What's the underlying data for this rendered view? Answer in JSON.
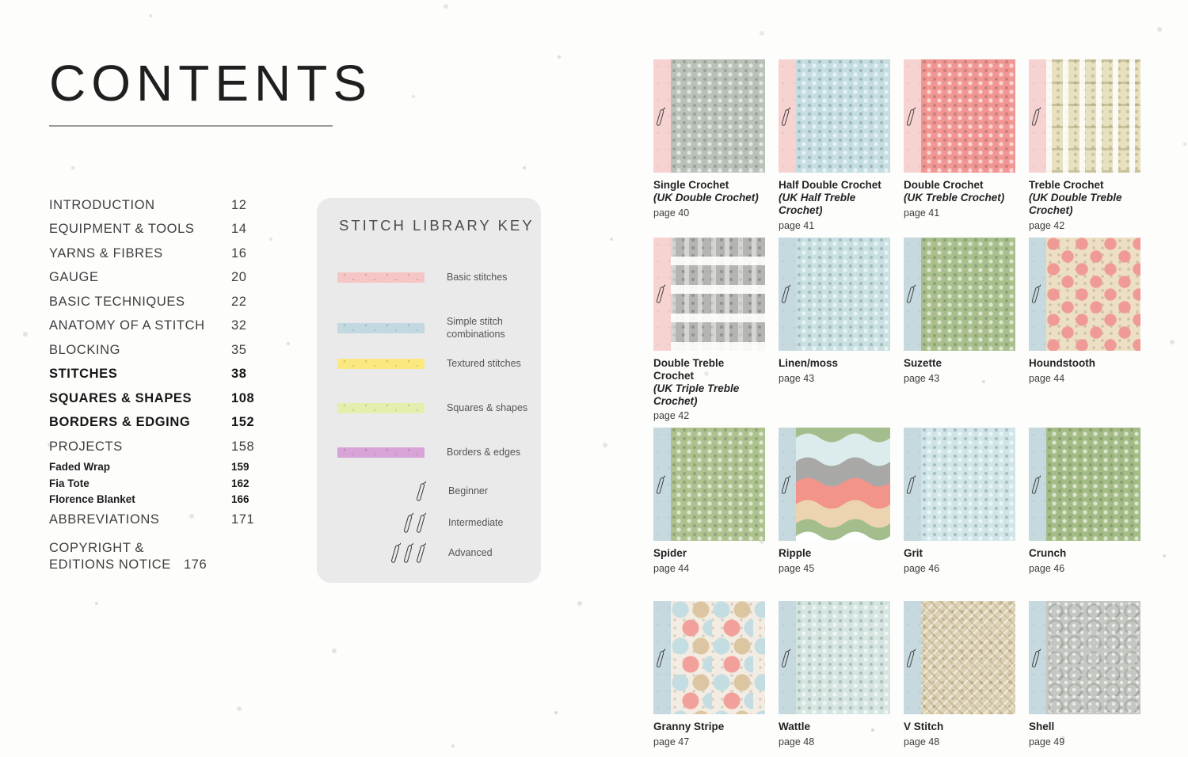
{
  "page": {
    "title": "CONTENTS"
  },
  "toc": {
    "items": [
      {
        "label": "INTRODUCTION",
        "page": "12",
        "style": "normal"
      },
      {
        "label": "EQUIPMENT & TOOLS",
        "page": "14",
        "style": "normal"
      },
      {
        "label": "YARNS & FIBRES",
        "page": "16",
        "style": "normal"
      },
      {
        "label": "GAUGE",
        "page": "20",
        "style": "normal"
      },
      {
        "label": "BASIC TECHNIQUES",
        "page": "22",
        "style": "normal"
      },
      {
        "label": "ANATOMY OF A STITCH",
        "page": "32",
        "style": "normal"
      },
      {
        "label": "BLOCKING",
        "page": "35",
        "style": "normal"
      },
      {
        "label": "STITCHES",
        "page": "38",
        "style": "bold"
      },
      {
        "label": "SQUARES & SHAPES",
        "page": "108",
        "style": "bold"
      },
      {
        "label": "BORDERS & EDGING",
        "page": "152",
        "style": "bold"
      },
      {
        "label": "PROJECTS",
        "page": "158",
        "style": "normal"
      },
      {
        "label": "Faded Wrap",
        "page": "159",
        "style": "sub"
      },
      {
        "label": "Fia Tote",
        "page": "162",
        "style": "sub"
      },
      {
        "label": "Florence Blanket",
        "page": "166",
        "style": "sub"
      },
      {
        "label": "ABBREVIATIONS",
        "page": "171",
        "style": "normal"
      },
      {
        "label": "COPYRIGHT & EDITIONS NOTICE",
        "page": "176",
        "style": "normal wrap"
      }
    ]
  },
  "key": {
    "title": "STITCH LIBRARY KEY",
    "categories": [
      {
        "label": "Basic stitches",
        "color": "#f5c6c4"
      },
      {
        "label": "Simple stitch combinations",
        "color": "#c2d9e2"
      },
      {
        "label": "Textured stitches",
        "color": "#fbe87e"
      },
      {
        "label": "Squares & shapes",
        "color": "#e4efae"
      },
      {
        "label": "Borders & edges",
        "color": "#d8a4d8"
      }
    ],
    "difficulty": [
      {
        "label": "Beginner",
        "hooks": 1
      },
      {
        "label": "Intermediate",
        "hooks": 2
      },
      {
        "label": "Advanced",
        "hooks": 3
      }
    ]
  },
  "strip_colors": {
    "basic": "#f6d2d0",
    "simple": "#c6d9de"
  },
  "swatches": [
    {
      "name": "Single Crochet",
      "alt": "(UK Double Crochet)",
      "page": "page 40",
      "category": "basic",
      "hooks": 1,
      "texture": "plain",
      "base": "#b9c1b8"
    },
    {
      "name": "Half Double Crochet",
      "alt": "(UK Half Treble Crochet)",
      "page": "page 41",
      "category": "basic",
      "hooks": 1,
      "texture": "plain",
      "base": "#c4dde0"
    },
    {
      "name": "Double Crochet",
      "alt": "(UK Treble Crochet)",
      "page": "page 41",
      "category": "basic",
      "hooks": 1,
      "texture": "plain",
      "base": "#f19693"
    },
    {
      "name": "Treble Crochet",
      "alt": "(UK Double Treble Crochet)",
      "page": "page 42",
      "category": "basic",
      "hooks": 1,
      "texture": "treble",
      "base": "#e8e1c0"
    },
    {
      "name": "Double Treble Crochet",
      "alt": "(UK Triple Treble Crochet)",
      "page": "page 42",
      "category": "basic",
      "hooks": 1,
      "texture": "dtreble",
      "base": "#b4b4b1"
    },
    {
      "name": "Linen/moss",
      "alt": "",
      "page": "page 43",
      "category": "simple",
      "hooks": 1,
      "texture": "plain",
      "base": "#c8e0e2"
    },
    {
      "name": "Suzette",
      "alt": "",
      "page": "page 43",
      "category": "simple",
      "hooks": 1,
      "texture": "plain",
      "base": "#a9bf8c"
    },
    {
      "name": "Houndstooth",
      "alt": "",
      "page": "page 44",
      "category": "simple",
      "hooks": 1,
      "texture": "hound",
      "base": "#ecdfc4",
      "accent": "#f09a95"
    },
    {
      "name": "Spider",
      "alt": "",
      "page": "page 44",
      "category": "simple",
      "hooks": 1,
      "texture": "plain",
      "base": "#adc28f"
    },
    {
      "name": "Ripple",
      "alt": "",
      "page": "page 45",
      "category": "simple",
      "hooks": 1,
      "texture": "ripple",
      "base": "#ffffff",
      "ripple_colors": [
        "#a4bd8d",
        "#dcecec",
        "#a8a9a6",
        "#f2948a",
        "#edd4b1",
        "#a4bd8d",
        "#ffffff"
      ]
    },
    {
      "name": "Grit",
      "alt": "",
      "page": "page 46",
      "category": "simple",
      "hooks": 1,
      "texture": "plain",
      "base": "#cfe5e8"
    },
    {
      "name": "Crunch",
      "alt": "",
      "page": "page 46",
      "category": "simple",
      "hooks": 1,
      "texture": "plain",
      "base": "#a3bc85"
    },
    {
      "name": "Granny Stripe",
      "alt": "",
      "page": "page 47",
      "category": "simple",
      "hooks": 1,
      "texture": "granny",
      "base": "#f3ece2",
      "granny_colors": [
        "#c3dde2",
        "#dcc6a2",
        "#f2a09b"
      ]
    },
    {
      "name": "Wattle",
      "alt": "",
      "page": "page 48",
      "category": "simple",
      "hooks": 1,
      "texture": "plain",
      "base": "#d4e5e1"
    },
    {
      "name": "V Stitch",
      "alt": "",
      "page": "page 48",
      "category": "simple",
      "hooks": 1,
      "texture": "vstitch",
      "base": "#ded2b4"
    },
    {
      "name": "Shell",
      "alt": "",
      "page": "page 49",
      "category": "simple",
      "hooks": 1,
      "texture": "shell",
      "base": "#c5c8c2"
    }
  ]
}
